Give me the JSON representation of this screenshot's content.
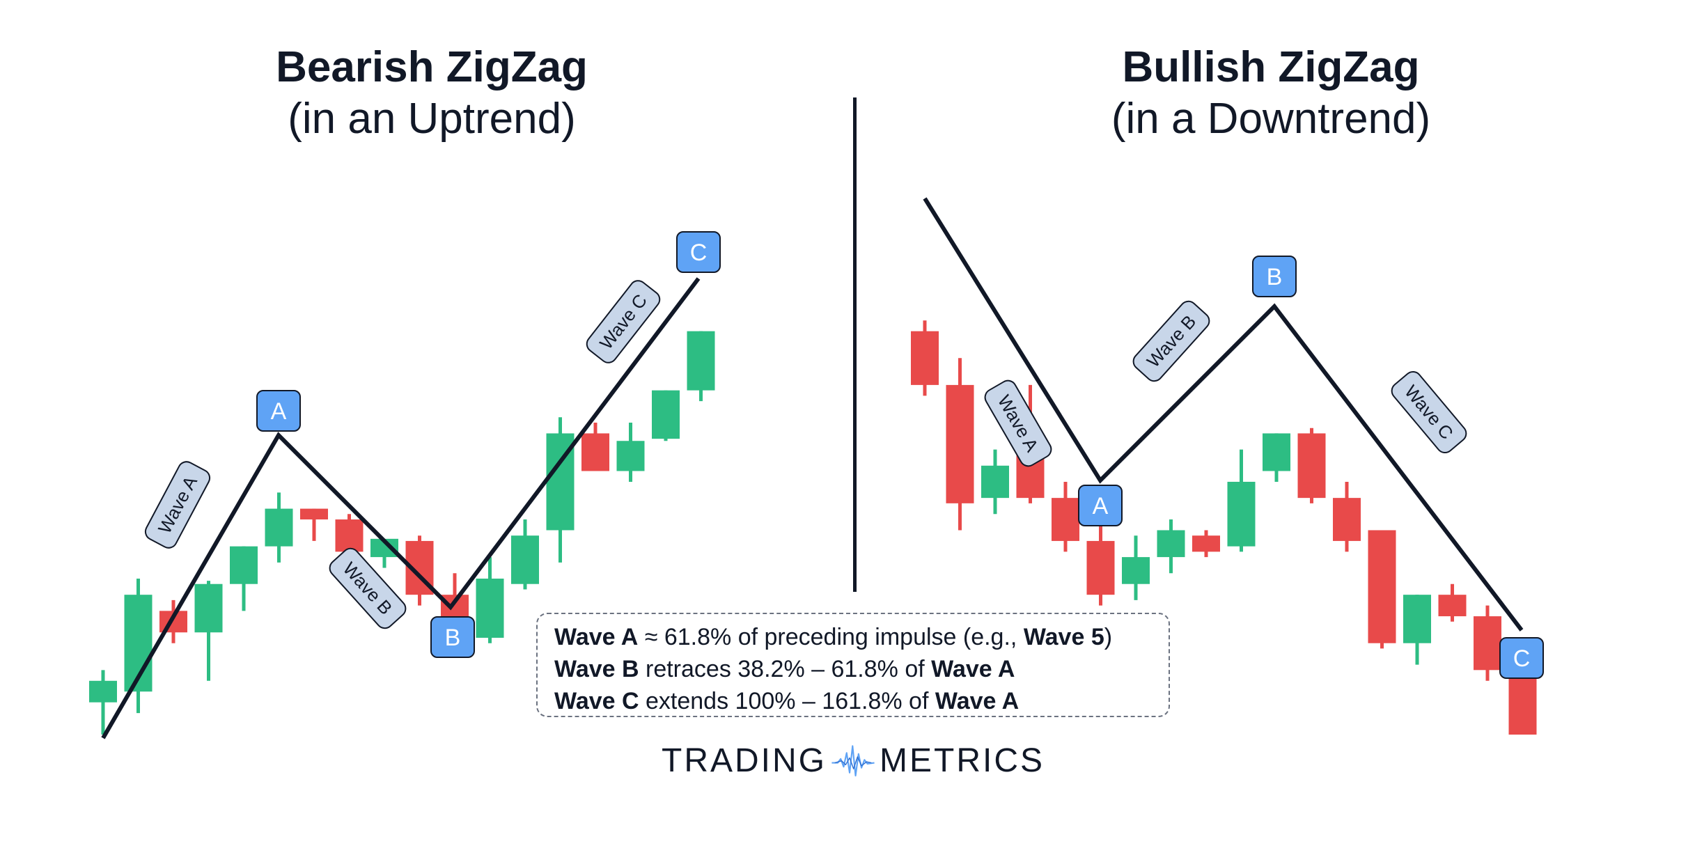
{
  "titles": {
    "left_main": "Bearish ZigZag",
    "left_sub": "(in an Uptrend)",
    "right_main": "Bullish ZigZag",
    "right_sub": "(in a Downtrend)"
  },
  "colors": {
    "bull": "#2dbd83",
    "bear": "#e84a4a",
    "marker": "#5fa3f5",
    "label_fill": "#c8d6e9",
    "line": "#111827"
  },
  "markers": {
    "a": "A",
    "b": "B",
    "c": "C"
  },
  "wave_labels": {
    "a": "Wave A",
    "b": "Wave B",
    "c": "Wave C"
  },
  "notes": [
    {
      "b1": "Wave A",
      "t1": " ≈ 61.8% of preceding impulse (e.g., ",
      "b2": "Wave 5",
      "t2": ")"
    },
    {
      "b1": "Wave B",
      "t1": " retraces 38.2% – 61.8% of ",
      "b2": "Wave A",
      "t2": ""
    },
    {
      "b1": "Wave C",
      "t1": " extends 100% – 161.8% of ",
      "b2": "Wave A",
      "t2": ""
    }
  ],
  "logo": {
    "left": "TRADING",
    "right": "METRICS"
  },
  "chart_data": [
    {
      "type": "candlestick",
      "title": "Bearish ZigZag",
      "subtitle": "(in an Uptrend)",
      "pattern_points": [
        "start",
        "A",
        "B",
        "C"
      ],
      "candles": [
        {
          "o": 85,
          "h": 115,
          "l": 55,
          "c": 105
        },
        {
          "o": 95,
          "h": 200,
          "l": 75,
          "c": 185
        },
        {
          "o": 170,
          "h": 180,
          "l": 140,
          "c": 150
        },
        {
          "o": 150,
          "h": 198,
          "l": 105,
          "c": 195
        },
        {
          "o": 195,
          "h": 230,
          "l": 170,
          "c": 230
        },
        {
          "o": 230,
          "h": 280,
          "l": 215,
          "c": 265
        },
        {
          "o": 265,
          "h": 265,
          "l": 235,
          "c": 255
        },
        {
          "o": 255,
          "h": 260,
          "l": 200,
          "c": 225
        },
        {
          "o": 220,
          "h": 235,
          "l": 210,
          "c": 237
        },
        {
          "o": 235,
          "h": 240,
          "l": 175,
          "c": 185
        },
        {
          "o": 185,
          "h": 205,
          "l": 135,
          "c": 140
        },
        {
          "o": 145,
          "h": 220,
          "l": 140,
          "c": 200
        },
        {
          "o": 195,
          "h": 255,
          "l": 190,
          "c": 240
        },
        {
          "o": 245,
          "h": 350,
          "l": 215,
          "c": 335
        },
        {
          "o": 335,
          "h": 345,
          "l": 300,
          "c": 300
        },
        {
          "o": 300,
          "h": 345,
          "l": 290,
          "c": 328
        },
        {
          "o": 330,
          "h": 375,
          "l": 328,
          "c": 375
        },
        {
          "o": 375,
          "h": 430,
          "l": 365,
          "c": 430
        }
      ]
    },
    {
      "type": "candlestick",
      "title": "Bullish ZigZag",
      "subtitle": "(in a Downtrend)",
      "pattern_points": [
        "start",
        "A",
        "B",
        "C"
      ],
      "candles": [
        {
          "o": 430,
          "h": 440,
          "l": 370,
          "c": 380
        },
        {
          "o": 380,
          "h": 405,
          "l": 245,
          "c": 270
        },
        {
          "o": 275,
          "h": 320,
          "l": 260,
          "c": 305
        },
        {
          "o": 325,
          "h": 380,
          "l": 270,
          "c": 275
        },
        {
          "o": 275,
          "h": 290,
          "l": 225,
          "c": 235
        },
        {
          "o": 235,
          "h": 255,
          "l": 175,
          "c": 185
        },
        {
          "o": 195,
          "h": 240,
          "l": 180,
          "c": 220
        },
        {
          "o": 220,
          "h": 255,
          "l": 205,
          "c": 245
        },
        {
          "o": 240,
          "h": 245,
          "l": 220,
          "c": 225
        },
        {
          "o": 230,
          "h": 320,
          "l": 225,
          "c": 290
        },
        {
          "o": 300,
          "h": 335,
          "l": 290,
          "c": 335
        },
        {
          "o": 335,
          "h": 340,
          "l": 270,
          "c": 275
        },
        {
          "o": 275,
          "h": 290,
          "l": 225,
          "c": 235
        },
        {
          "o": 245,
          "h": 245,
          "l": 135,
          "c": 140
        },
        {
          "o": 140,
          "h": 185,
          "l": 120,
          "c": 185
        },
        {
          "o": 185,
          "h": 195,
          "l": 160,
          "c": 165
        },
        {
          "o": 165,
          "h": 175,
          "l": 105,
          "c": 115
        },
        {
          "o": 110,
          "h": 115,
          "l": 55,
          "c": 55
        }
      ]
    }
  ]
}
